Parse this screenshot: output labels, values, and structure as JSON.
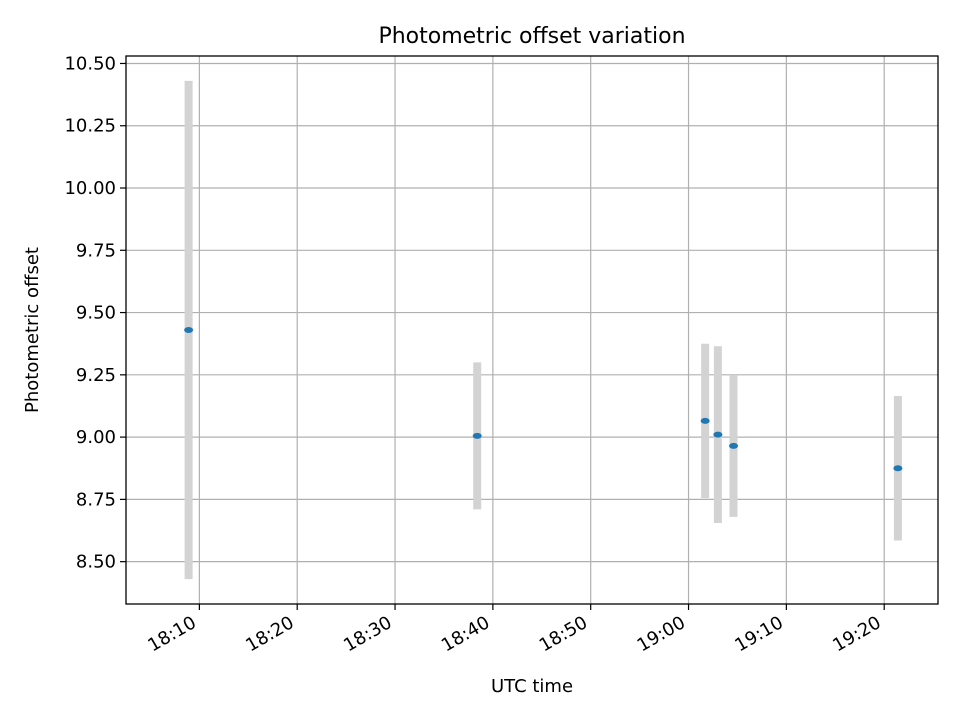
{
  "chart_data": {
    "type": "scatter",
    "title": "Photometric offset variation",
    "xlabel": "UTC time",
    "ylabel": "Photometric offset",
    "x_axis_type": "time",
    "xlim": [
      "18:02:30",
      "19:25:30"
    ],
    "ylim": [
      8.33,
      10.53
    ],
    "grid": true,
    "legend": "none",
    "x_ticks": [
      "18:10",
      "18:20",
      "18:30",
      "18:40",
      "18:50",
      "19:00",
      "19:10",
      "19:20"
    ],
    "y_ticks": [
      "8.50",
      "8.75",
      "9.00",
      "9.25",
      "9.50",
      "9.75",
      "10.00",
      "10.25",
      "10.50"
    ],
    "series": [
      {
        "x": [
          "18:08:54",
          "18:38:24",
          "19:01:42",
          "19:03:00",
          "19:04:36",
          "19:21:24"
        ],
        "y": [
          9.43,
          9.005,
          9.065,
          9.01,
          8.965,
          8.875
        ],
        "error": [
          1.0,
          0.295,
          0.31,
          0.355,
          0.285,
          0.29
        ]
      }
    ],
    "colors": {
      "point": "#1f77b4",
      "errorbar": "#d3d3d3",
      "grid": "#b0b0b0",
      "axis": "#000000"
    }
  }
}
